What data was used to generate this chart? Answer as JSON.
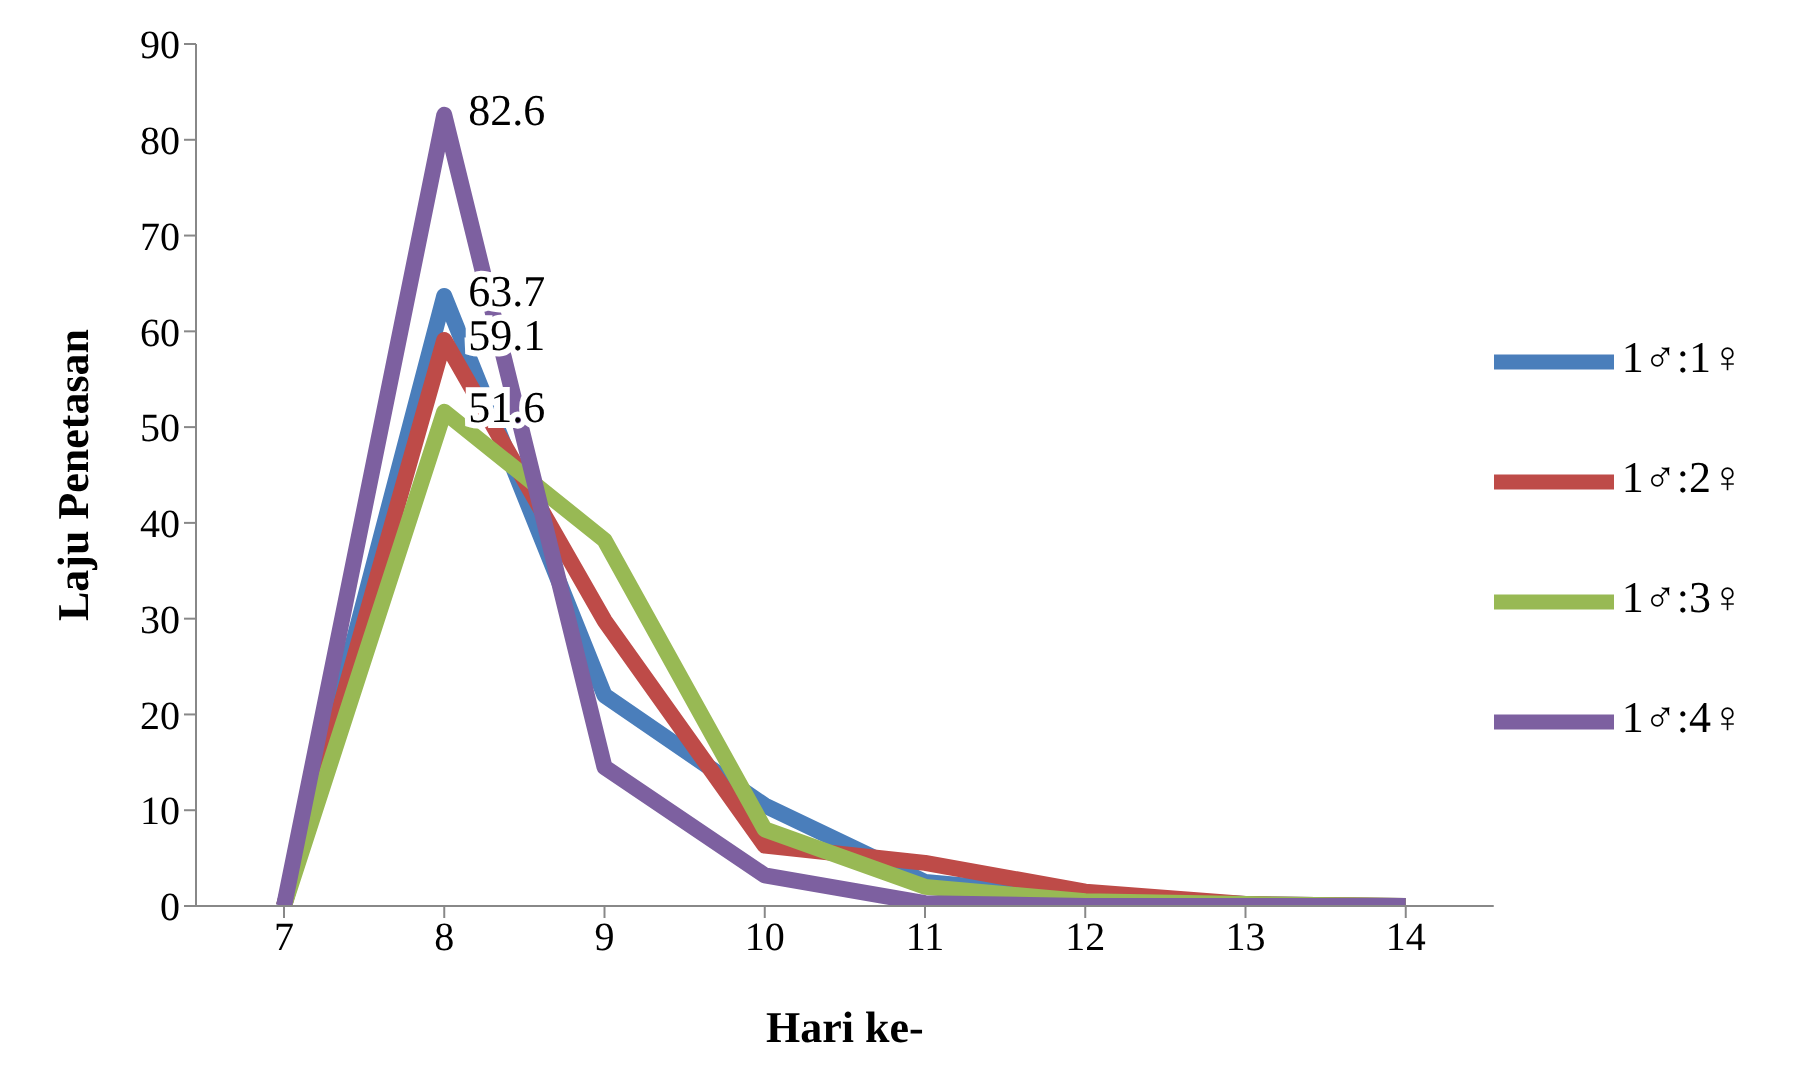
{
  "chart_data": {
    "type": "line",
    "xlabel": "Hari ke-",
    "ylabel": "Laju Penetasan",
    "categories": [
      "7",
      "8",
      "9",
      "10",
      "11",
      "12",
      "13",
      "14"
    ],
    "series": [
      {
        "name": "1♂:1♀",
        "color": "#4a7ebb",
        "values": [
          0,
          63.7,
          22,
          10.5,
          2.5,
          1,
          0.2,
          0
        ],
        "value_labels": [
          null,
          "63.7",
          null,
          null,
          null,
          null,
          null,
          null
        ]
      },
      {
        "name": "1♂:2♀",
        "color": "#be4b48",
        "values": [
          0,
          59.1,
          29.8,
          6.3,
          4.5,
          1.5,
          0.2,
          0
        ],
        "value_labels": [
          null,
          "59.1",
          null,
          null,
          null,
          null,
          null,
          null
        ]
      },
      {
        "name": "1♂:3♀",
        "color": "#98b954",
        "values": [
          0,
          51.6,
          38.2,
          8,
          2,
          0.5,
          0.2,
          0
        ],
        "value_labels": [
          null,
          "51.6",
          null,
          null,
          null,
          null,
          null,
          null
        ]
      },
      {
        "name": "1♂:4♀",
        "color": "#7d60a0",
        "values": [
          0,
          82.6,
          14.5,
          3.2,
          0.3,
          0,
          0,
          0
        ],
        "value_labels": [
          null,
          "82.6",
          null,
          null,
          null,
          null,
          null,
          null
        ]
      }
    ],
    "ylim": [
      0,
      90
    ],
    "yticks": [
      0,
      10,
      20,
      30,
      40,
      50,
      60,
      70,
      80,
      90
    ],
    "grid": false,
    "legend": "right",
    "marker": "none",
    "line_style": "solid"
  }
}
